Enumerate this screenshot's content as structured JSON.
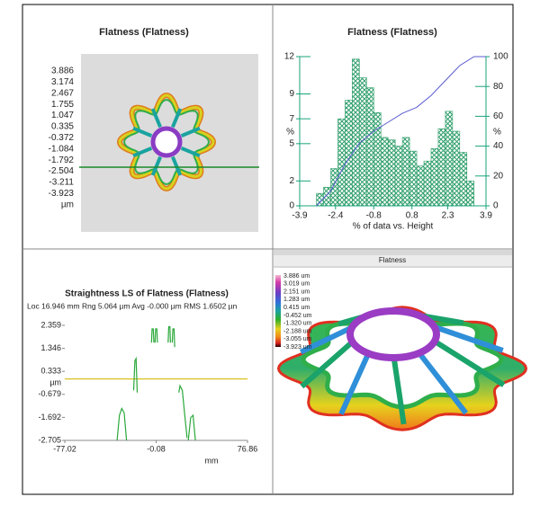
{
  "panels": {
    "top_left": {
      "title": "Flatness (Flatness)",
      "legend": [
        {
          "label": "3.886",
          "color": "#f2b8cc"
        },
        {
          "label": "3.174",
          "color": "#d63ca8"
        },
        {
          "label": "2.467",
          "color": "#8a3cc4"
        },
        {
          "label": "1.755",
          "color": "#3a3ab8"
        },
        {
          "label": "1.047",
          "color": "#2f8fd8"
        },
        {
          "label": "0.335",
          "color": "#1aa3a0"
        },
        {
          "label": "-0.372",
          "color": "#1f9e3c"
        },
        {
          "label": "-1.084",
          "color": "#4caf2a"
        },
        {
          "label": "-1.792",
          "color": "#e6d21e"
        },
        {
          "label": "-2.504",
          "color": "#f08a1c"
        },
        {
          "label": "-3.211",
          "color": "#d42020"
        },
        {
          "label": "-3.923",
          "color": "#6a1010"
        }
      ],
      "unit": "µm"
    },
    "histogram": {
      "type": "histogram",
      "title": "Flatness (Flatness)",
      "xlabel": "% of data vs. Height",
      "ylabel": "%",
      "y2label": "%",
      "bins": [
        -3.2,
        -2.9,
        -2.6,
        -2.3,
        -2.0,
        -1.7,
        -1.4,
        -1.1,
        -0.8,
        -0.5,
        -0.2,
        0.1,
        0.4,
        0.7,
        1.0,
        1.3,
        1.6,
        1.9,
        2.2,
        2.5,
        2.8,
        3.1,
        3.4
      ],
      "values": [
        1,
        1.5,
        3,
        7,
        8.5,
        11.8,
        10.3,
        9.5,
        7.5,
        5.5,
        5.3,
        4.8,
        5.5,
        4.4,
        3.2,
        3.6,
        4.6,
        6.2,
        7.6,
        6,
        4.3,
        2
      ],
      "color": "#2e9e6a",
      "cumulative": {
        "x": [
          -3.2,
          -2.6,
          -2.0,
          -1.4,
          -0.8,
          -0.2,
          0.4,
          1.0,
          1.6,
          2.2,
          2.8,
          3.4,
          3.9
        ],
        "values": [
          0,
          10,
          28,
          42,
          50,
          56,
          62,
          66,
          74,
          84,
          94,
          100,
          100
        ],
        "color": "#5a5ad0"
      },
      "xlim": [
        -3.9,
        3.9
      ],
      "xticks": [
        -3.9,
        -2.4,
        -0.8,
        0.8,
        2.3,
        3.9
      ],
      "ylim": [
        0,
        12
      ],
      "yticks": [
        0,
        2,
        5,
        7,
        9,
        12
      ],
      "y2lim": [
        0,
        100
      ],
      "y2ticks": [
        0,
        20,
        40,
        60,
        80,
        100
      ]
    },
    "profile": {
      "type": "line",
      "title": "Straightness LS of Flatness (Flatness)",
      "subtitle": "Loc 16.946 mm  Rng 5.064 µm Avg -0.000 µm RMS 1.6502 µn",
      "ylabel": "µm",
      "xlabel": "mm",
      "xlim": [
        -77.02,
        76.86
      ],
      "xticks": [
        -77.02,
        -0.08,
        76.86
      ],
      "ylim": [
        -2.705,
        2.359
      ],
      "yticks": [
        2.359,
        1.346,
        0.333,
        -0.679,
        -1.692,
        -2.705
      ],
      "series": {
        "color": "#2aa83a",
        "x": [
          -19,
          -18,
          -17,
          -16,
          null,
          -4,
          -3.5,
          -2.5,
          -2,
          null,
          -1,
          -0.5,
          0.5,
          1,
          null,
          10,
          10.5,
          11.5,
          12,
          null,
          13.5,
          14,
          15,
          15.5,
          null,
          19,
          20,
          22,
          24,
          26,
          null,
          -33,
          -31,
          -29,
          -27,
          -25,
          null,
          27,
          29,
          31,
          33
        ],
        "values": [
          -0.5,
          0.8,
          0.9,
          -0.6,
          null,
          1.6,
          2.2,
          2.2,
          1.6,
          null,
          1.6,
          2.2,
          2.2,
          1.6,
          null,
          1.6,
          2.3,
          2.3,
          1.6,
          null,
          1.6,
          2.2,
          2.2,
          1.4,
          null,
          -0.6,
          -0.3,
          -0.5,
          -1.6,
          -2.6,
          null,
          -2.7,
          -1.6,
          -1.3,
          -1.5,
          -2.7,
          null,
          -2.7,
          -1.7,
          -1.6,
          -2.7
        ]
      }
    },
    "view3d": {
      "title": "Flatness",
      "legend": [
        "3.886 um",
        "3.019 um",
        "2.151 um",
        "1.283 um",
        "0.415 um",
        "-0.452 um",
        "-1.320 um",
        "-2.188 um",
        "-3.055 um",
        "-3.923 um"
      ]
    }
  }
}
